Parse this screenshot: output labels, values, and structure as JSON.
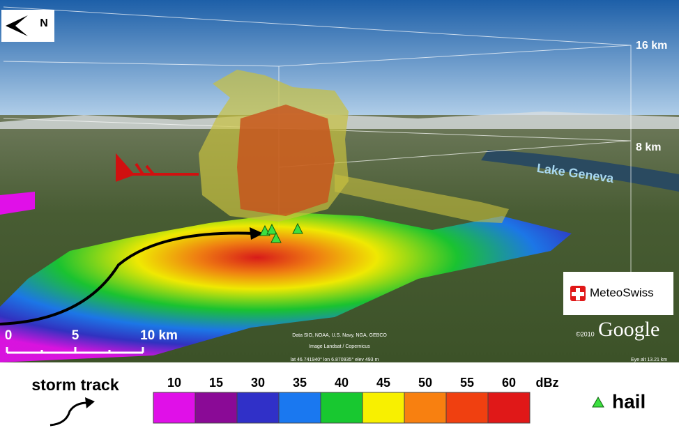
{
  "compass": "N",
  "heights": [
    "16 km",
    "8 km"
  ],
  "place": "Lake Geneva",
  "brand": "MeteoSwiss",
  "provider": "Google",
  "copyright": "©2010",
  "scale": {
    "labels": [
      "0",
      "5",
      "10 km"
    ]
  },
  "attribution": [
    "Data SIO, NOAA, U.S. Navy, NGA, GEBCO",
    "Image Landsat / Copernicus"
  ],
  "status": {
    "position": "lat  46.741940°  lon  6.870935°  elev  493 m",
    "eye": "Eye alt   13.21 km"
  },
  "legend": {
    "track": "storm track",
    "unit": "dBz",
    "hail": "hail",
    "levels": [
      {
        "label": "10",
        "color": "#e010e8"
      },
      {
        "label": "15",
        "color": "#8a0a96"
      },
      {
        "label": "30",
        "color": "#3030c8"
      },
      {
        "label": "35",
        "color": "#1a78f0"
      },
      {
        "label": "40",
        "color": "#18c830"
      },
      {
        "label": "45",
        "color": "#f8f000"
      },
      {
        "label": "50",
        "color": "#f88010"
      },
      {
        "label": "55",
        "color": "#f04010"
      },
      {
        "label": "60",
        "color": "#e01818"
      }
    ]
  }
}
